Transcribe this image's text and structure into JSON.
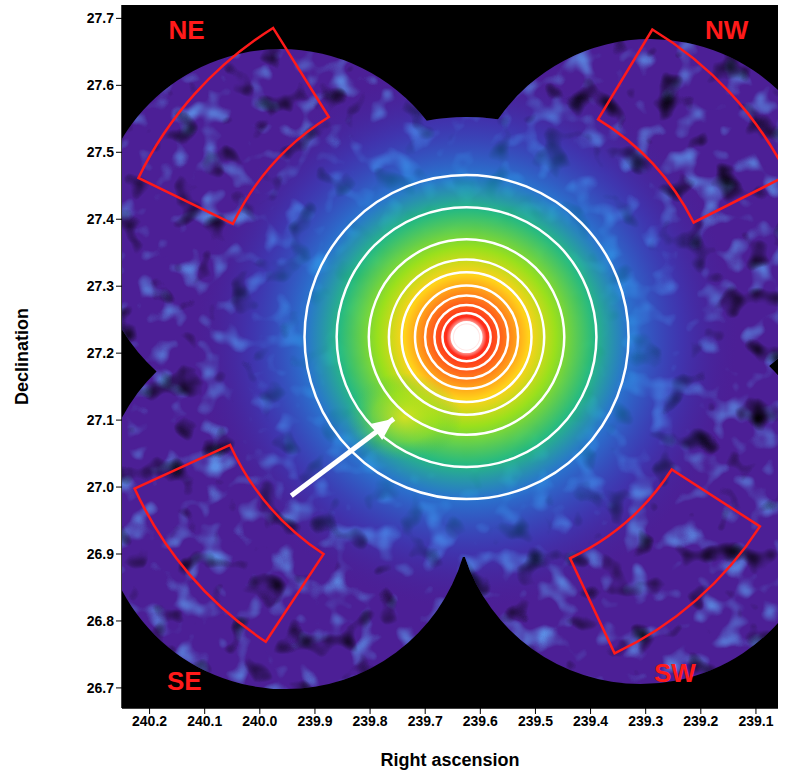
{
  "chart_data": {
    "type": "image",
    "xlabel": "Right ascension",
    "ylabel": "Declination",
    "xlim": [
      240.25,
      239.06
    ],
    "xticks": [
      240.2,
      240.1,
      {
        "value": 240,
        "label": "240.0"
      },
      239.9,
      239.8,
      239.7,
      239.6,
      239.5,
      239.4,
      239.3,
      239.2,
      239.1
    ],
    "ylim": [
      26.67,
      27.72
    ],
    "yticks": [
      26.7,
      26.8,
      26.9,
      {
        "value": 27,
        "label": "27.0"
      },
      27.1,
      27.2,
      27.3,
      27.4,
      27.5,
      27.6,
      27.7
    ],
    "center": {
      "x": 239.625,
      "y": 27.224
    },
    "circle_radii": [
      0.242,
      0.194,
      0.146,
      0.116,
      0.097,
      0.077,
      0.062,
      0.048,
      0.036,
      0.022
    ],
    "regions": [
      {
        "label": "NE",
        "x": 240.043,
        "y": 27.533,
        "label_x": 240.133,
        "label_y": 27.682
      },
      {
        "label": "NW",
        "x": 239.22,
        "y": 27.533,
        "label_x": 239.153,
        "label_y": 27.682
      },
      {
        "label": "SE",
        "x": 240.052,
        "y": 26.923,
        "label_x": 240.137,
        "label_y": 26.71
      },
      {
        "label": "SW",
        "x": 239.274,
        "y": 26.893,
        "label_x": 239.247,
        "label_y": 26.722
      }
    ],
    "arrow": {
      "x": [
        239.943,
        239.757
      ],
      "y": [
        26.987,
        27.102
      ]
    }
  }
}
